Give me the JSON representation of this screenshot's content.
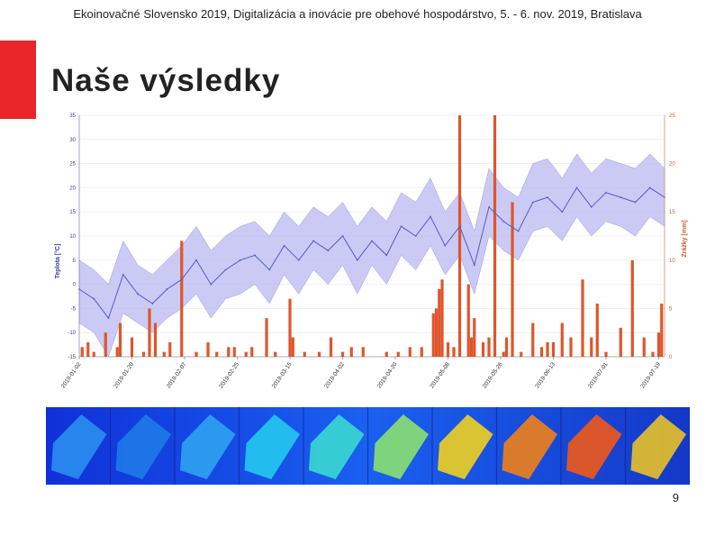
{
  "header": {
    "text": "Ekoinovačné Slovensko 2019, Digitalizácia a inovácie pre obehové hospodárstvo, 5. - 6. nov. 2019, Bratislava"
  },
  "slide": {
    "title": "Naše výsledky",
    "page_number": "9"
  },
  "colors": {
    "accent": "#e8262a",
    "temperature_line": "#5858c8",
    "temperature_band": "#b8b8f0",
    "precipitation": "#e0552a"
  },
  "chart_data": {
    "type": "line",
    "ylabel": "Teplota [°C]",
    "y2label": "Zrážky [mm]",
    "ylim": [
      -15,
      35
    ],
    "y2lim": [
      0,
      25
    ],
    "yticks": [
      35,
      30,
      25,
      20,
      15,
      10,
      5,
      0,
      -5,
      -10,
      -15
    ],
    "y2ticks": [
      25,
      20,
      15,
      10,
      5,
      0
    ],
    "xlim": [
      0,
      200
    ],
    "xticks": [
      {
        "x": 0,
        "label": "2019-01-02"
      },
      {
        "x": 18,
        "label": "2019-01-20"
      },
      {
        "x": 36,
        "label": "2019-02-07"
      },
      {
        "x": 54,
        "label": "2019-02-25"
      },
      {
        "x": 72,
        "label": "2019-03-15"
      },
      {
        "x": 90,
        "label": "2019-04-02"
      },
      {
        "x": 108,
        "label": "2019-04-20"
      },
      {
        "x": 126,
        "label": "2019-05-08"
      },
      {
        "x": 144,
        "label": "2019-05-26"
      },
      {
        "x": 162,
        "label": "2019-06-13"
      },
      {
        "x": 180,
        "label": "2019-07-01"
      },
      {
        "x": 198,
        "label": "2019-07-19"
      }
    ],
    "temperature": {
      "x": [
        0,
        5,
        10,
        15,
        20,
        25,
        30,
        35,
        40,
        45,
        50,
        55,
        60,
        65,
        70,
        75,
        80,
        85,
        90,
        95,
        100,
        105,
        110,
        115,
        120,
        125,
        130,
        135,
        140,
        145,
        150,
        155,
        160,
        165,
        170,
        175,
        180,
        185,
        190,
        195,
        200
      ],
      "mean": [
        -1,
        -3,
        -7,
        2,
        -2,
        -4,
        -1,
        1,
        5,
        0,
        3,
        5,
        6,
        3,
        8,
        5,
        9,
        7,
        10,
        5,
        9,
        6,
        12,
        10,
        14,
        8,
        12,
        4,
        16,
        13,
        11,
        17,
        18,
        15,
        20,
        16,
        19,
        18,
        17,
        20,
        18
      ],
      "min": [
        -8,
        -10,
        -15,
        -6,
        -8,
        -10,
        -7,
        -5,
        -2,
        -7,
        -3,
        -2,
        0,
        -4,
        2,
        -2,
        3,
        0,
        4,
        -2,
        4,
        0,
        6,
        3,
        8,
        2,
        6,
        -2,
        10,
        7,
        5,
        11,
        12,
        9,
        14,
        10,
        13,
        12,
        10,
        14,
        12
      ],
      "max": [
        5,
        3,
        0,
        9,
        4,
        2,
        5,
        8,
        12,
        7,
        10,
        12,
        13,
        10,
        15,
        12,
        16,
        14,
        17,
        12,
        16,
        13,
        19,
        17,
        22,
        15,
        19,
        11,
        24,
        20,
        18,
        25,
        26,
        22,
        27,
        23,
        26,
        25,
        24,
        27,
        24
      ]
    },
    "precipitation": {
      "x": [
        1,
        3,
        5,
        9,
        13,
        14,
        18,
        22,
        24,
        26,
        29,
        31,
        35,
        40,
        44,
        47,
        51,
        53,
        57,
        59,
        64,
        67,
        72,
        73,
        77,
        82,
        86,
        90,
        93,
        97,
        105,
        109,
        113,
        117,
        121,
        122,
        123,
        124,
        126,
        128,
        130,
        133,
        134,
        135,
        138,
        140,
        142,
        145,
        146,
        148,
        151,
        155,
        158,
        160,
        162,
        165,
        168,
        172,
        175,
        177,
        180,
        185,
        189,
        193,
        196,
        198,
        199
      ],
      "values": [
        1,
        1.5,
        0.5,
        2.5,
        1,
        3.5,
        2,
        0.5,
        5,
        3.5,
        0.5,
        1.5,
        12,
        0.5,
        1.5,
        0.5,
        1,
        1,
        0.5,
        1,
        4,
        0.5,
        6,
        2,
        0.5,
        0.5,
        2,
        0.5,
        1,
        1,
        0.5,
        0.5,
        1,
        1,
        4.5,
        5,
        7,
        8,
        1.5,
        1,
        25,
        7.5,
        2,
        4,
        1.5,
        2,
        25,
        0.5,
        2,
        16,
        0.5,
        3.5,
        1,
        1.5,
        1.5,
        3.5,
        2,
        8,
        2,
        5.5,
        0.5,
        3,
        10,
        2,
        0.5,
        2.5,
        5.5
      ]
    }
  }
}
